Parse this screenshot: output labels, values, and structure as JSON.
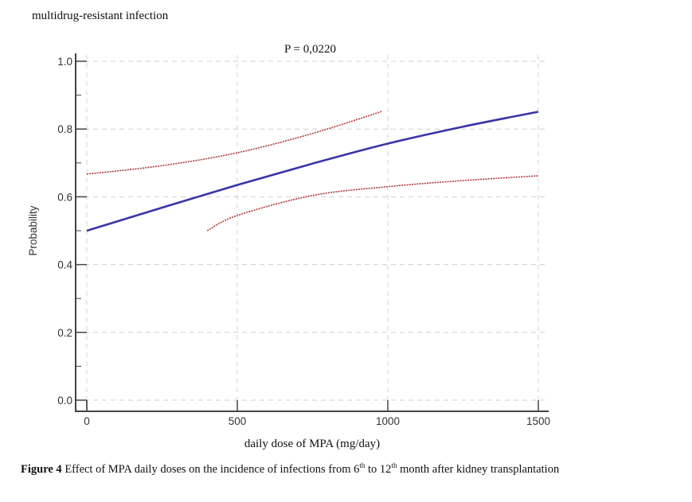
{
  "chart_data": {
    "type": "line",
    "title": "multidrug-resistant infection",
    "annotation": "P = 0,0220",
    "xlabel": "daily dose of MPA (mg/day)",
    "ylabel": "Probability",
    "xlim": [
      0,
      1500
    ],
    "ylim": [
      0,
      1.0
    ],
    "x_ticks": [
      0,
      500,
      1000,
      1500
    ],
    "x_tick_labels": [
      "0",
      "500",
      "1000",
      "1500"
    ],
    "y_ticks": [
      0,
      0.2,
      0.4,
      0.6,
      0.8,
      1.0
    ],
    "y_tick_labels": [
      "0.0",
      "0.2",
      "0.4",
      "0.6",
      "0.8",
      "1.0"
    ],
    "grid": true,
    "series": [
      {
        "name": "fitted probability",
        "style": "solid",
        "color": "#3a35a8",
        "x": [
          0,
          250,
          500,
          750,
          1000,
          1250,
          1500
        ],
        "y": [
          0.5,
          0.568,
          0.635,
          0.698,
          0.757,
          0.807,
          0.851
        ]
      },
      {
        "name": "upper confidence limit",
        "style": "dotted",
        "color": "#b03a3a",
        "x": [
          0,
          250,
          500,
          750,
          980
        ],
        "y": [
          0.667,
          0.692,
          0.73,
          0.787,
          0.852
        ]
      },
      {
        "name": "lower confidence limit",
        "style": "dotted",
        "color": "#b03a3a",
        "x": [
          400,
          500,
          750,
          1000,
          1250,
          1500
        ],
        "y": [
          0.5,
          0.545,
          0.604,
          0.63,
          0.648,
          0.662
        ]
      }
    ]
  },
  "caption": {
    "label": "Figure 4",
    "text_1": " Effect of MPA daily doses on the incidence of infections from 6",
    "sup_1": "th",
    "text_2": " to 12",
    "sup_2": "th",
    "text_3": " month after kidney transplantation"
  }
}
